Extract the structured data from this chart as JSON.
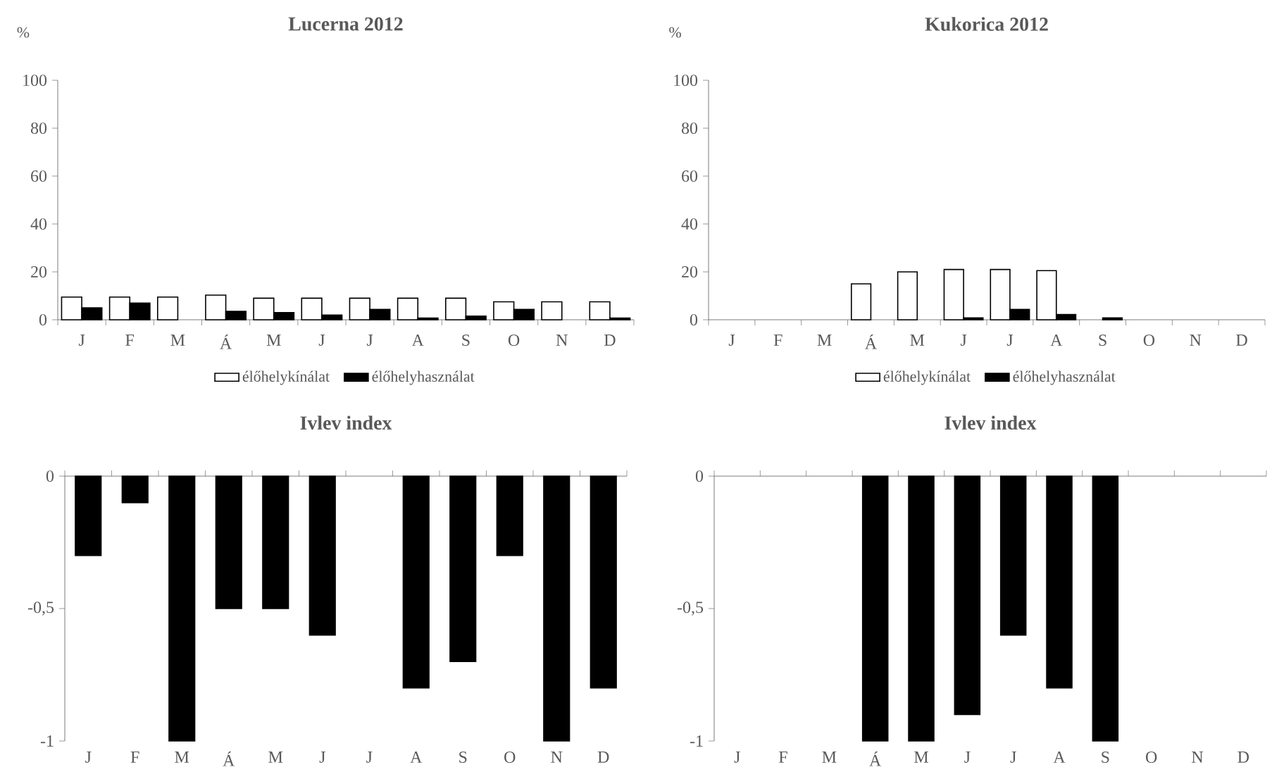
{
  "chart_data": [
    {
      "type": "bar",
      "title": "Lucerna  2012",
      "ylabel": "%",
      "categories": [
        "J",
        "F",
        "M",
        "Á",
        "M",
        "J",
        "J",
        "A",
        "S",
        "O",
        "N",
        "D"
      ],
      "series": [
        {
          "name": "élőhelykínálat",
          "color": "#ffffff",
          "values": [
            9.5,
            9.5,
            9.5,
            10.3,
            9,
            9,
            9,
            9,
            9,
            7.5,
            7.5,
            7.5
          ]
        },
        {
          "name": "élőhelyhasználat",
          "color": "#000000",
          "values": [
            5,
            7,
            null,
            3.5,
            3,
            2,
            4.3,
            0.7,
            1.5,
            4.3,
            null,
            0.7
          ]
        }
      ],
      "ylim": [
        0,
        100
      ],
      "yticks": [
        0,
        20,
        40,
        60,
        80,
        100
      ],
      "legend": "bottom"
    },
    {
      "type": "bar",
      "title": "Kukorica  2012",
      "ylabel": "%",
      "categories": [
        "J",
        "F",
        "M",
        "Á",
        "M",
        "J",
        "J",
        "A",
        "S",
        "O",
        "N",
        "D"
      ],
      "series": [
        {
          "name": "élőhelykínálat",
          "color": "#ffffff",
          "values": [
            null,
            null,
            null,
            15,
            20,
            21,
            21,
            20.5,
            null,
            null,
            null,
            null
          ]
        },
        {
          "name": "élőhelyhasználat",
          "color": "#000000",
          "values": [
            null,
            null,
            null,
            null,
            null,
            0.8,
            4.3,
            2.2,
            0.8,
            null,
            null,
            null
          ]
        }
      ],
      "ylim": [
        0,
        100
      ],
      "yticks": [
        0,
        20,
        40,
        60,
        80,
        100
      ],
      "legend": "bottom"
    },
    {
      "type": "bar",
      "title": "Ivlev index",
      "categories": [
        "J",
        "F",
        "M",
        "Á",
        "M",
        "J",
        "J",
        "A",
        "S",
        "O",
        "N",
        "D"
      ],
      "series": [
        {
          "color": "#000000",
          "values": [
            -0.3,
            -0.1,
            -1,
            -0.5,
            -0.5,
            -0.6,
            null,
            -0.8,
            -0.7,
            -0.3,
            -1,
            -0.8
          ]
        }
      ],
      "ylim": [
        -1,
        0
      ],
      "yticks": [
        -1,
        {
          "value": -0.5,
          "label": "-0,5"
        },
        0
      ]
    },
    {
      "type": "bar",
      "title": "Ivlev index",
      "categories": [
        "J",
        "F",
        "M",
        "Á",
        "M",
        "J",
        "J",
        "A",
        "S",
        "O",
        "N",
        "D"
      ],
      "series": [
        {
          "color": "#000000",
          "values": [
            null,
            null,
            null,
            -1,
            -1,
            -0.9,
            -0.6,
            -0.8,
            -1,
            null,
            null,
            null
          ]
        }
      ],
      "ylim": [
        -1,
        0
      ],
      "yticks": [
        -1,
        {
          "value": -0.5,
          "label": "-0,5"
        },
        0
      ]
    }
  ]
}
